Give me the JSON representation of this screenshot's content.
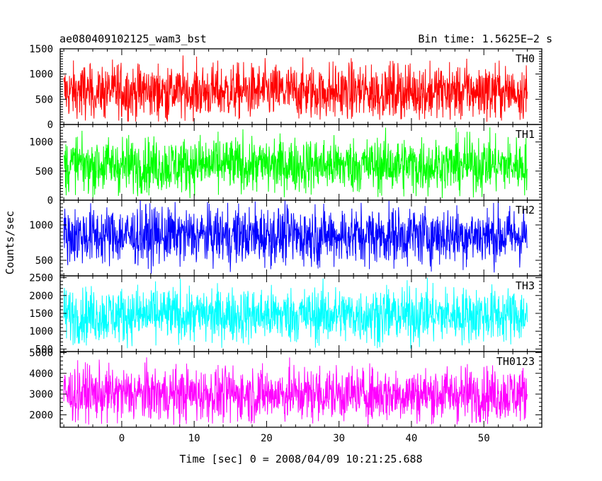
{
  "header": {
    "title": "ae080409102125_wam3_bst",
    "bin_time": "Bin time: 1.5625E−2 s"
  },
  "axes": {
    "xlabel": "Time [sec] 0 = 2008/04/09 10:21:25.688",
    "ylabel": "Counts/sec"
  },
  "chart_data": [
    {
      "type": "line",
      "name": "TH0",
      "color": "#ff0000",
      "x_range": [
        -8.5,
        58
      ],
      "data_x_range": [
        -8,
        56
      ],
      "ylim": [
        0,
        1500
      ],
      "yticks": [
        0,
        500,
        1000,
        1500
      ],
      "level": {
        "mean": 650,
        "min": 50,
        "max": 1450
      }
    },
    {
      "type": "line",
      "name": "TH1",
      "color": "#00ff00",
      "x_range": [
        -8.5,
        58
      ],
      "data_x_range": [
        -8,
        56
      ],
      "ylim": [
        0,
        1300
      ],
      "yticks": [
        0,
        500,
        1000
      ],
      "level": {
        "mean": 600,
        "min": 30,
        "max": 1250
      }
    },
    {
      "type": "line",
      "name": "TH2",
      "color": "#0000ff",
      "x_range": [
        -8.5,
        58
      ],
      "data_x_range": [
        -8,
        56
      ],
      "ylim": [
        280,
        1350
      ],
      "yticks": [
        500,
        1000
      ],
      "level": {
        "mean": 850,
        "min": 290,
        "max": 1350
      }
    },
    {
      "type": "line",
      "name": "TH3",
      "color": "#00ffff",
      "x_range": [
        -8.5,
        58
      ],
      "data_x_range": [
        -8,
        56
      ],
      "ylim": [
        430,
        2550
      ],
      "yticks": [
        500,
        1000,
        1500,
        2000,
        2500
      ],
      "level": {
        "mean": 1450,
        "min": 500,
        "max": 2500
      }
    },
    {
      "type": "line",
      "name": "TH0123",
      "color": "#ff00ff",
      "x_range": [
        -8.5,
        58
      ],
      "data_x_range": [
        -8,
        56
      ],
      "ylim": [
        1400,
        5050
      ],
      "yticks": [
        2000,
        3000,
        4000,
        5000
      ],
      "level": {
        "mean": 3000,
        "min": 1500,
        "max": 4900
      }
    }
  ],
  "x_axis": {
    "ticks": [
      0,
      10,
      20,
      30,
      40,
      50
    ]
  }
}
